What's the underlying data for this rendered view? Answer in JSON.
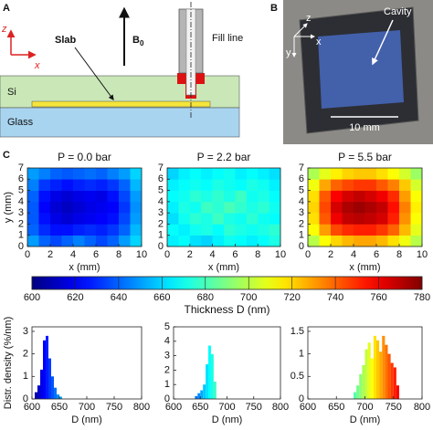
{
  "panel_a": {
    "label": "A",
    "axis_z": "z",
    "axis_x": "x",
    "slab": "Slab",
    "field": "B",
    "field_sub": "0",
    "fill_line": "Fill line",
    "layer_si": "Si",
    "layer_glass": "Glass"
  },
  "panel_b": {
    "label": "B",
    "axis_z": "z",
    "axis_x": "x",
    "axis_y": "y",
    "cavity": "Cavity",
    "scale_bar": "10 mm"
  },
  "panel_c": {
    "label": "C"
  },
  "chart_data": [
    {
      "type": "heatmap",
      "title": "P = 0.0 bar",
      "x_label": "x (mm)",
      "y_label": "y (mm)",
      "xlim": [
        0,
        10
      ],
      "ylim": [
        0,
        7
      ],
      "xticks": [
        0,
        2,
        4,
        6,
        8,
        10
      ],
      "yticks": [
        0,
        1,
        2,
        3,
        4,
        5,
        6,
        7
      ],
      "colormap": "jet",
      "zlim": [
        600,
        780
      ],
      "z": [
        [
          650,
          640,
          635,
          640,
          645,
          640,
          635,
          640,
          650,
          660
        ],
        [
          640,
          630,
          625,
          625,
          628,
          630,
          628,
          632,
          640,
          655
        ],
        [
          638,
          625,
          618,
          615,
          618,
          620,
          622,
          625,
          635,
          650
        ],
        [
          638,
          622,
          615,
          612,
          615,
          618,
          620,
          622,
          632,
          648
        ],
        [
          640,
          625,
          618,
          615,
          618,
          620,
          618,
          625,
          635,
          650
        ],
        [
          645,
          632,
          628,
          625,
          628,
          630,
          628,
          632,
          640,
          655
        ],
        [
          650,
          645,
          640,
          638,
          640,
          642,
          640,
          645,
          650,
          660
        ]
      ]
    },
    {
      "type": "heatmap",
      "title": "P = 2.2 bar",
      "x_label": "x (mm)",
      "xlim": [
        0,
        10
      ],
      "ylim": [
        0,
        7
      ],
      "xticks": [
        0,
        2,
        4,
        6,
        8,
        10
      ],
      "yticks": [
        0,
        1,
        2,
        3,
        4,
        5,
        6,
        7
      ],
      "colormap": "jet",
      "zlim": [
        600,
        780
      ],
      "z": [
        [
          665,
          668,
          662,
          660,
          665,
          670,
          668,
          665,
          668,
          672
        ],
        [
          668,
          665,
          670,
          672,
          668,
          675,
          672,
          670,
          672,
          675
        ],
        [
          662,
          670,
          675,
          672,
          678,
          672,
          670,
          675,
          670,
          668
        ],
        [
          665,
          672,
          670,
          678,
          675,
          680,
          676,
          672,
          675,
          670
        ],
        [
          668,
          670,
          675,
          672,
          676,
          672,
          678,
          670,
          672,
          668
        ],
        [
          665,
          668,
          670,
          668,
          672,
          670,
          668,
          672,
          670,
          665
        ],
        [
          660,
          665,
          668,
          665,
          668,
          670,
          665,
          668,
          665,
          662
        ]
      ]
    },
    {
      "type": "heatmap",
      "title": "P = 5.5 bar",
      "x_label": "x (mm)",
      "xlim": [
        0,
        10
      ],
      "ylim": [
        0,
        7
      ],
      "xticks": [
        0,
        2,
        4,
        6,
        8,
        10
      ],
      "yticks": [
        0,
        1,
        2,
        3,
        4,
        5,
        6,
        7
      ],
      "colormap": "jet",
      "zlim": [
        600,
        780
      ],
      "z": [
        [
          700,
          712,
          720,
          725,
          728,
          728,
          725,
          718,
          710,
          700
        ],
        [
          712,
          730,
          745,
          750,
          752,
          752,
          748,
          740,
          725,
          708
        ],
        [
          718,
          742,
          760,
          768,
          770,
          768,
          765,
          752,
          732,
          712
        ],
        [
          720,
          745,
          765,
          772,
          775,
          772,
          768,
          755,
          735,
          715
        ],
        [
          718,
          742,
          758,
          765,
          768,
          765,
          760,
          750,
          730,
          712
        ],
        [
          710,
          728,
          740,
          745,
          748,
          748,
          742,
          735,
          722,
          705
        ],
        [
          698,
          708,
          715,
          720,
          722,
          722,
          718,
          712,
          705,
          695
        ]
      ]
    },
    {
      "type": "colorbar",
      "title": "Thickness D (nm)",
      "colormap": "jet",
      "xlim": [
        600,
        780
      ],
      "xticks": [
        600,
        620,
        640,
        660,
        680,
        700,
        720,
        740,
        760,
        780
      ]
    },
    {
      "type": "histogram",
      "x_label": "D (nm)",
      "y_label": "Distr. density (%/nm)",
      "xlim": [
        600,
        800
      ],
      "ylim": [
        0,
        3.2
      ],
      "xticks": [
        600,
        650,
        700,
        750,
        800
      ],
      "yticks": [
        0,
        1,
        2,
        3
      ],
      "colormap": "jet",
      "zlim": [
        600,
        780
      ],
      "bins": [
        605,
        610,
        615,
        620,
        625,
        630,
        635,
        640,
        645,
        650,
        655
      ],
      "values": [
        0.3,
        0.6,
        1.3,
        2.6,
        2.8,
        1.8,
        1.0,
        0.5,
        0.2,
        0.1
      ]
    },
    {
      "type": "histogram",
      "x_label": "D (nm)",
      "xlim": [
        600,
        800
      ],
      "ylim": [
        0,
        5
      ],
      "xticks": [
        600,
        650,
        700,
        750,
        800
      ],
      "yticks": [
        0,
        1,
        2,
        3,
        4,
        5
      ],
      "colormap": "jet",
      "zlim": [
        600,
        780
      ],
      "bins": [
        640,
        645,
        650,
        655,
        660,
        665,
        670,
        675,
        680
      ],
      "values": [
        0.2,
        0.4,
        0.6,
        1.0,
        2.4,
        3.7,
        3.1,
        1.2
      ]
    },
    {
      "type": "histogram",
      "x_label": "D (nm)",
      "xlim": [
        600,
        800
      ],
      "ylim": [
        0,
        1.6
      ],
      "xticks": [
        600,
        650,
        700,
        750,
        800
      ],
      "yticks": [
        0,
        0.5,
        1,
        1.5
      ],
      "colormap": "jet",
      "zlim": [
        600,
        780
      ],
      "bins": [
        680,
        685,
        690,
        695,
        700,
        705,
        710,
        715,
        720,
        725,
        730,
        735,
        740,
        745,
        750,
        755,
        760
      ],
      "values": [
        0.15,
        0.3,
        0.55,
        0.75,
        1.1,
        1.25,
        0.9,
        1.4,
        1.3,
        1.05,
        1.4,
        1.2,
        1.0,
        0.8,
        0.7,
        0.3
      ]
    }
  ]
}
